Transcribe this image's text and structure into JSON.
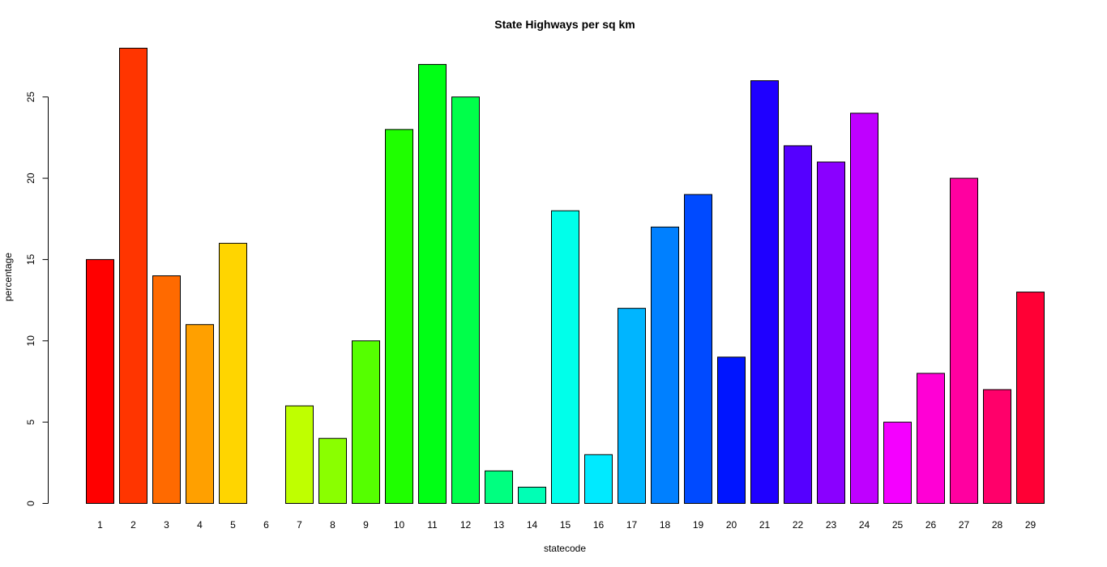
{
  "chart_data": {
    "type": "bar",
    "title": "State Highways per sq km",
    "xlabel": "statecode",
    "ylabel": "percentage",
    "categories": [
      "1",
      "2",
      "3",
      "4",
      "5",
      "6",
      "7",
      "8",
      "9",
      "10",
      "11",
      "12",
      "13",
      "14",
      "15",
      "16",
      "17",
      "18",
      "19",
      "20",
      "21",
      "22",
      "23",
      "24",
      "25",
      "26",
      "27",
      "28",
      "29"
    ],
    "values": [
      15,
      28,
      14,
      11,
      16,
      0,
      6,
      4,
      10,
      23,
      27,
      25,
      2,
      1,
      18,
      3,
      12,
      17,
      19,
      9,
      26,
      22,
      21,
      24,
      5,
      8,
      20,
      7,
      13
    ],
    "colors": [
      "#FF0000",
      "#FF3500",
      "#FF6A00",
      "#FFA000",
      "#FFD500",
      "#F4FF00",
      "#BFFF00",
      "#8AFF00",
      "#55FF00",
      "#1FFF00",
      "#00FF15",
      "#00FF4A",
      "#00FF80",
      "#00FFB5",
      "#00FFEA",
      "#00EAFF",
      "#00B5FF",
      "#0080FF",
      "#004AFF",
      "#0015FF",
      "#1F00FF",
      "#5500FF",
      "#8A00FF",
      "#BF00FF",
      "#F400FF",
      "#FF00D5",
      "#FF00A0",
      "#FF006A",
      "#FF0035"
    ],
    "yticks": [
      0,
      5,
      10,
      15,
      20,
      25
    ],
    "ylim": [
      0,
      28
    ],
    "grid": false,
    "legend": "none"
  }
}
